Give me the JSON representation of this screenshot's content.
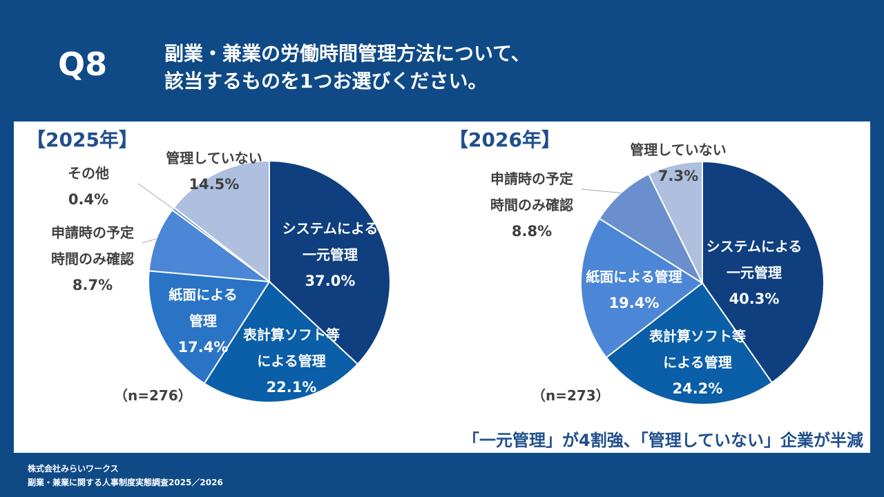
{
  "header": {
    "question_number": "Q8",
    "question_line1": "副業・兼業の労働時間管理方法について、",
    "question_line2": "該当するものを1つお選びください。"
  },
  "conclusion": "「一元管理」が4割強、「管理していない」企業が半減",
  "footer": {
    "company": "株式会社みらいワークス",
    "survey": "副業・兼業に関する人事制度実態調査2025／2026"
  },
  "colors": {
    "background": "#0f4a86",
    "text_dark": "#404040",
    "accent_text": "#1f4e8c"
  },
  "chart_data": [
    {
      "type": "pie",
      "title": "【2025年】",
      "n_label": "（n=276）",
      "slices": [
        {
          "label_lines": [
            "システムによる",
            "一元管理"
          ],
          "value": 37.0,
          "value_label": "37.0%",
          "color": "#0f3f7f"
        },
        {
          "label_lines": [
            "表計算ソフト等",
            "による管理"
          ],
          "value": 22.1,
          "value_label": "22.1%",
          "color": "#0b5ea8"
        },
        {
          "label_lines": [
            "紙面による",
            "管理"
          ],
          "value": 17.4,
          "value_label": "17.4%",
          "color": "#2a74c6"
        },
        {
          "label_lines": [
            "申請時の予定",
            "時間のみ確認"
          ],
          "value": 8.7,
          "value_label": "8.7%",
          "color": "#4c86d6"
        },
        {
          "label_lines": [
            "その他"
          ],
          "value": 0.4,
          "value_label": "0.4%",
          "color": "#6f93cf"
        },
        {
          "label_lines": [
            "管理していない"
          ],
          "value": 14.5,
          "value_label": "14.5%",
          "color": "#aebfdf"
        }
      ]
    },
    {
      "type": "pie",
      "title": "【2026年】",
      "n_label": "（n=273）",
      "slices": [
        {
          "label_lines": [
            "システムによる",
            "一元管理"
          ],
          "value": 40.3,
          "value_label": "40.3%",
          "color": "#0f3f7f"
        },
        {
          "label_lines": [
            "表計算ソフト等",
            "による管理"
          ],
          "value": 24.2,
          "value_label": "24.2%",
          "color": "#0b5ea8"
        },
        {
          "label_lines": [
            "紙面による管理"
          ],
          "value": 19.4,
          "value_label": "19.4%",
          "color": "#4c86d6"
        },
        {
          "label_lines": [
            "申請時の予定",
            "時間のみ確認"
          ],
          "value": 8.8,
          "value_label": "8.8%",
          "color": "#6a8fcc"
        },
        {
          "label_lines": [
            "管理していない"
          ],
          "value": 7.3,
          "value_label": "7.3%",
          "color": "#aebfdf"
        }
      ]
    }
  ]
}
